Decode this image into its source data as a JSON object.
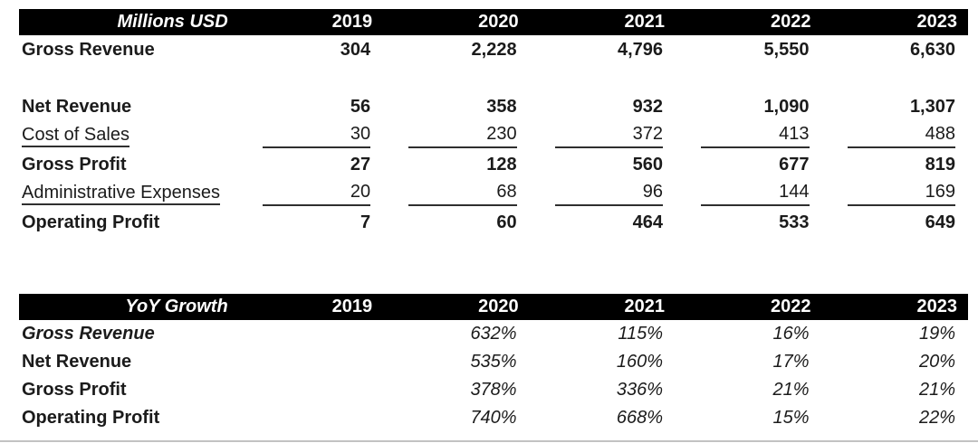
{
  "colors": {
    "header_bg": "#000000",
    "header_text": "#ffffff",
    "body_text": "#1b1b1b",
    "cell_underline": "#2f2f2f",
    "bottom_rule": "#c2c2c2"
  },
  "millions_table": {
    "header": {
      "label": "Millions USD",
      "years": [
        "2019",
        "2020",
        "2021",
        "2022",
        "2023"
      ]
    },
    "rows": [
      {
        "label": "Gross Revenue",
        "style": "bold",
        "values": [
          "304",
          "2,228",
          "4,796",
          "5,550",
          "6,630"
        ]
      },
      {
        "label": "",
        "style": "blank",
        "values": [
          "",
          "",
          "",
          "",
          ""
        ]
      },
      {
        "label": "Net Revenue",
        "style": "bold",
        "values": [
          "56",
          "358",
          "932",
          "1,090",
          "1,307"
        ]
      },
      {
        "label": "Cost of Sales",
        "style": "underline",
        "values": [
          "30",
          "230",
          "372",
          "413",
          "488"
        ]
      },
      {
        "label": "Gross Profit",
        "style": "bold",
        "values": [
          "27",
          "128",
          "560",
          "677",
          "819"
        ]
      },
      {
        "label": "Administrative Expenses",
        "style": "underline",
        "values": [
          "20",
          "68",
          "96",
          "144",
          "169"
        ]
      },
      {
        "label": "Operating Profit",
        "style": "bold",
        "values": [
          "7",
          "60",
          "464",
          "533",
          "649"
        ]
      }
    ]
  },
  "yoy_table": {
    "header": {
      "label": "YoY Growth",
      "years": [
        "2019",
        "2020",
        "2021",
        "2022",
        "2023"
      ]
    },
    "rows": [
      {
        "label": "Gross Revenue",
        "style": "bold-italic",
        "values": [
          "",
          "632%",
          "115%",
          "16%",
          "19%"
        ]
      },
      {
        "label": "Net Revenue",
        "style": "bold",
        "values": [
          "",
          "535%",
          "160%",
          "17%",
          "20%"
        ]
      },
      {
        "label": "Gross Profit",
        "style": "bold",
        "values": [
          "",
          "378%",
          "336%",
          "21%",
          "21%"
        ]
      },
      {
        "label": "Operating Profit",
        "style": "bold",
        "values": [
          "",
          "740%",
          "668%",
          "15%",
          "22%"
        ]
      }
    ]
  }
}
